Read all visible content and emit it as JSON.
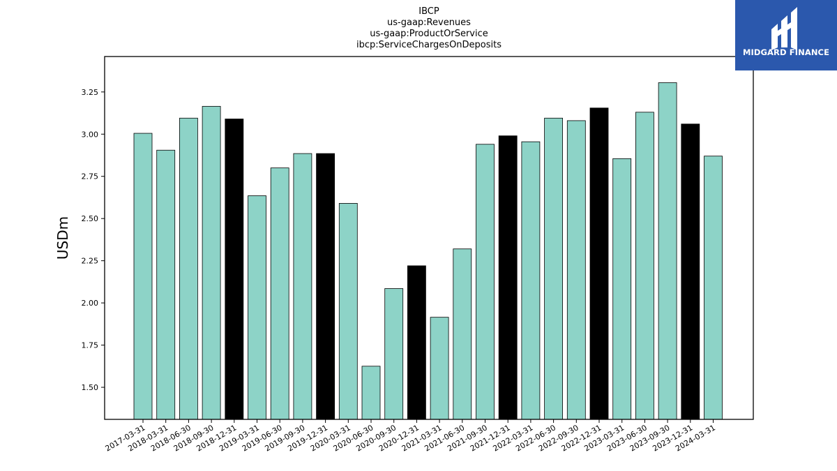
{
  "chart_data": {
    "type": "bar",
    "title_lines": [
      "IBCP",
      "us-gaap:Revenues",
      "us-gaap:ProductOrService",
      "ibcp:ServiceChargesOnDeposits"
    ],
    "xlabel": "",
    "ylabel": "USDm",
    "ylim": [
      1.31,
      3.46
    ],
    "yticks": [
      "1.50",
      "1.75",
      "2.00",
      "2.25",
      "2.50",
      "2.75",
      "3.00",
      "3.25"
    ],
    "categories": [
      "2017-03-31",
      "2018-03-31",
      "2018-06-30",
      "2018-09-30",
      "2018-12-31",
      "2019-03-31",
      "2019-06-30",
      "2019-09-30",
      "2019-12-31",
      "2020-03-31",
      "2020-06-30",
      "2020-09-30",
      "2020-12-31",
      "2021-03-31",
      "2021-06-30",
      "2021-09-30",
      "2021-12-31",
      "2022-03-31",
      "2022-06-30",
      "2022-09-30",
      "2022-12-31",
      "2023-03-31",
      "2023-06-30",
      "2023-09-30",
      "2023-12-31",
      "2024-03-31"
    ],
    "values": [
      3.005,
      2.905,
      3.095,
      3.165,
      3.09,
      2.635,
      2.8,
      2.885,
      2.885,
      2.59,
      1.625,
      2.085,
      2.22,
      1.915,
      2.32,
      2.94,
      2.99,
      2.955,
      3.095,
      3.08,
      3.155,
      2.855,
      3.13,
      3.305,
      3.06,
      2.87
    ],
    "highlighted": [
      false,
      false,
      false,
      false,
      true,
      false,
      false,
      false,
      true,
      false,
      false,
      false,
      true,
      false,
      false,
      false,
      true,
      false,
      false,
      false,
      true,
      false,
      false,
      false,
      true,
      false
    ],
    "colors": {
      "normal": "#8dd3c7",
      "highlight": "#000000",
      "edge": "#000000"
    },
    "grid": false,
    "legend": "none"
  },
  "logo": {
    "text": "MIDGARD FINANCE",
    "background": "#2b58ad"
  }
}
